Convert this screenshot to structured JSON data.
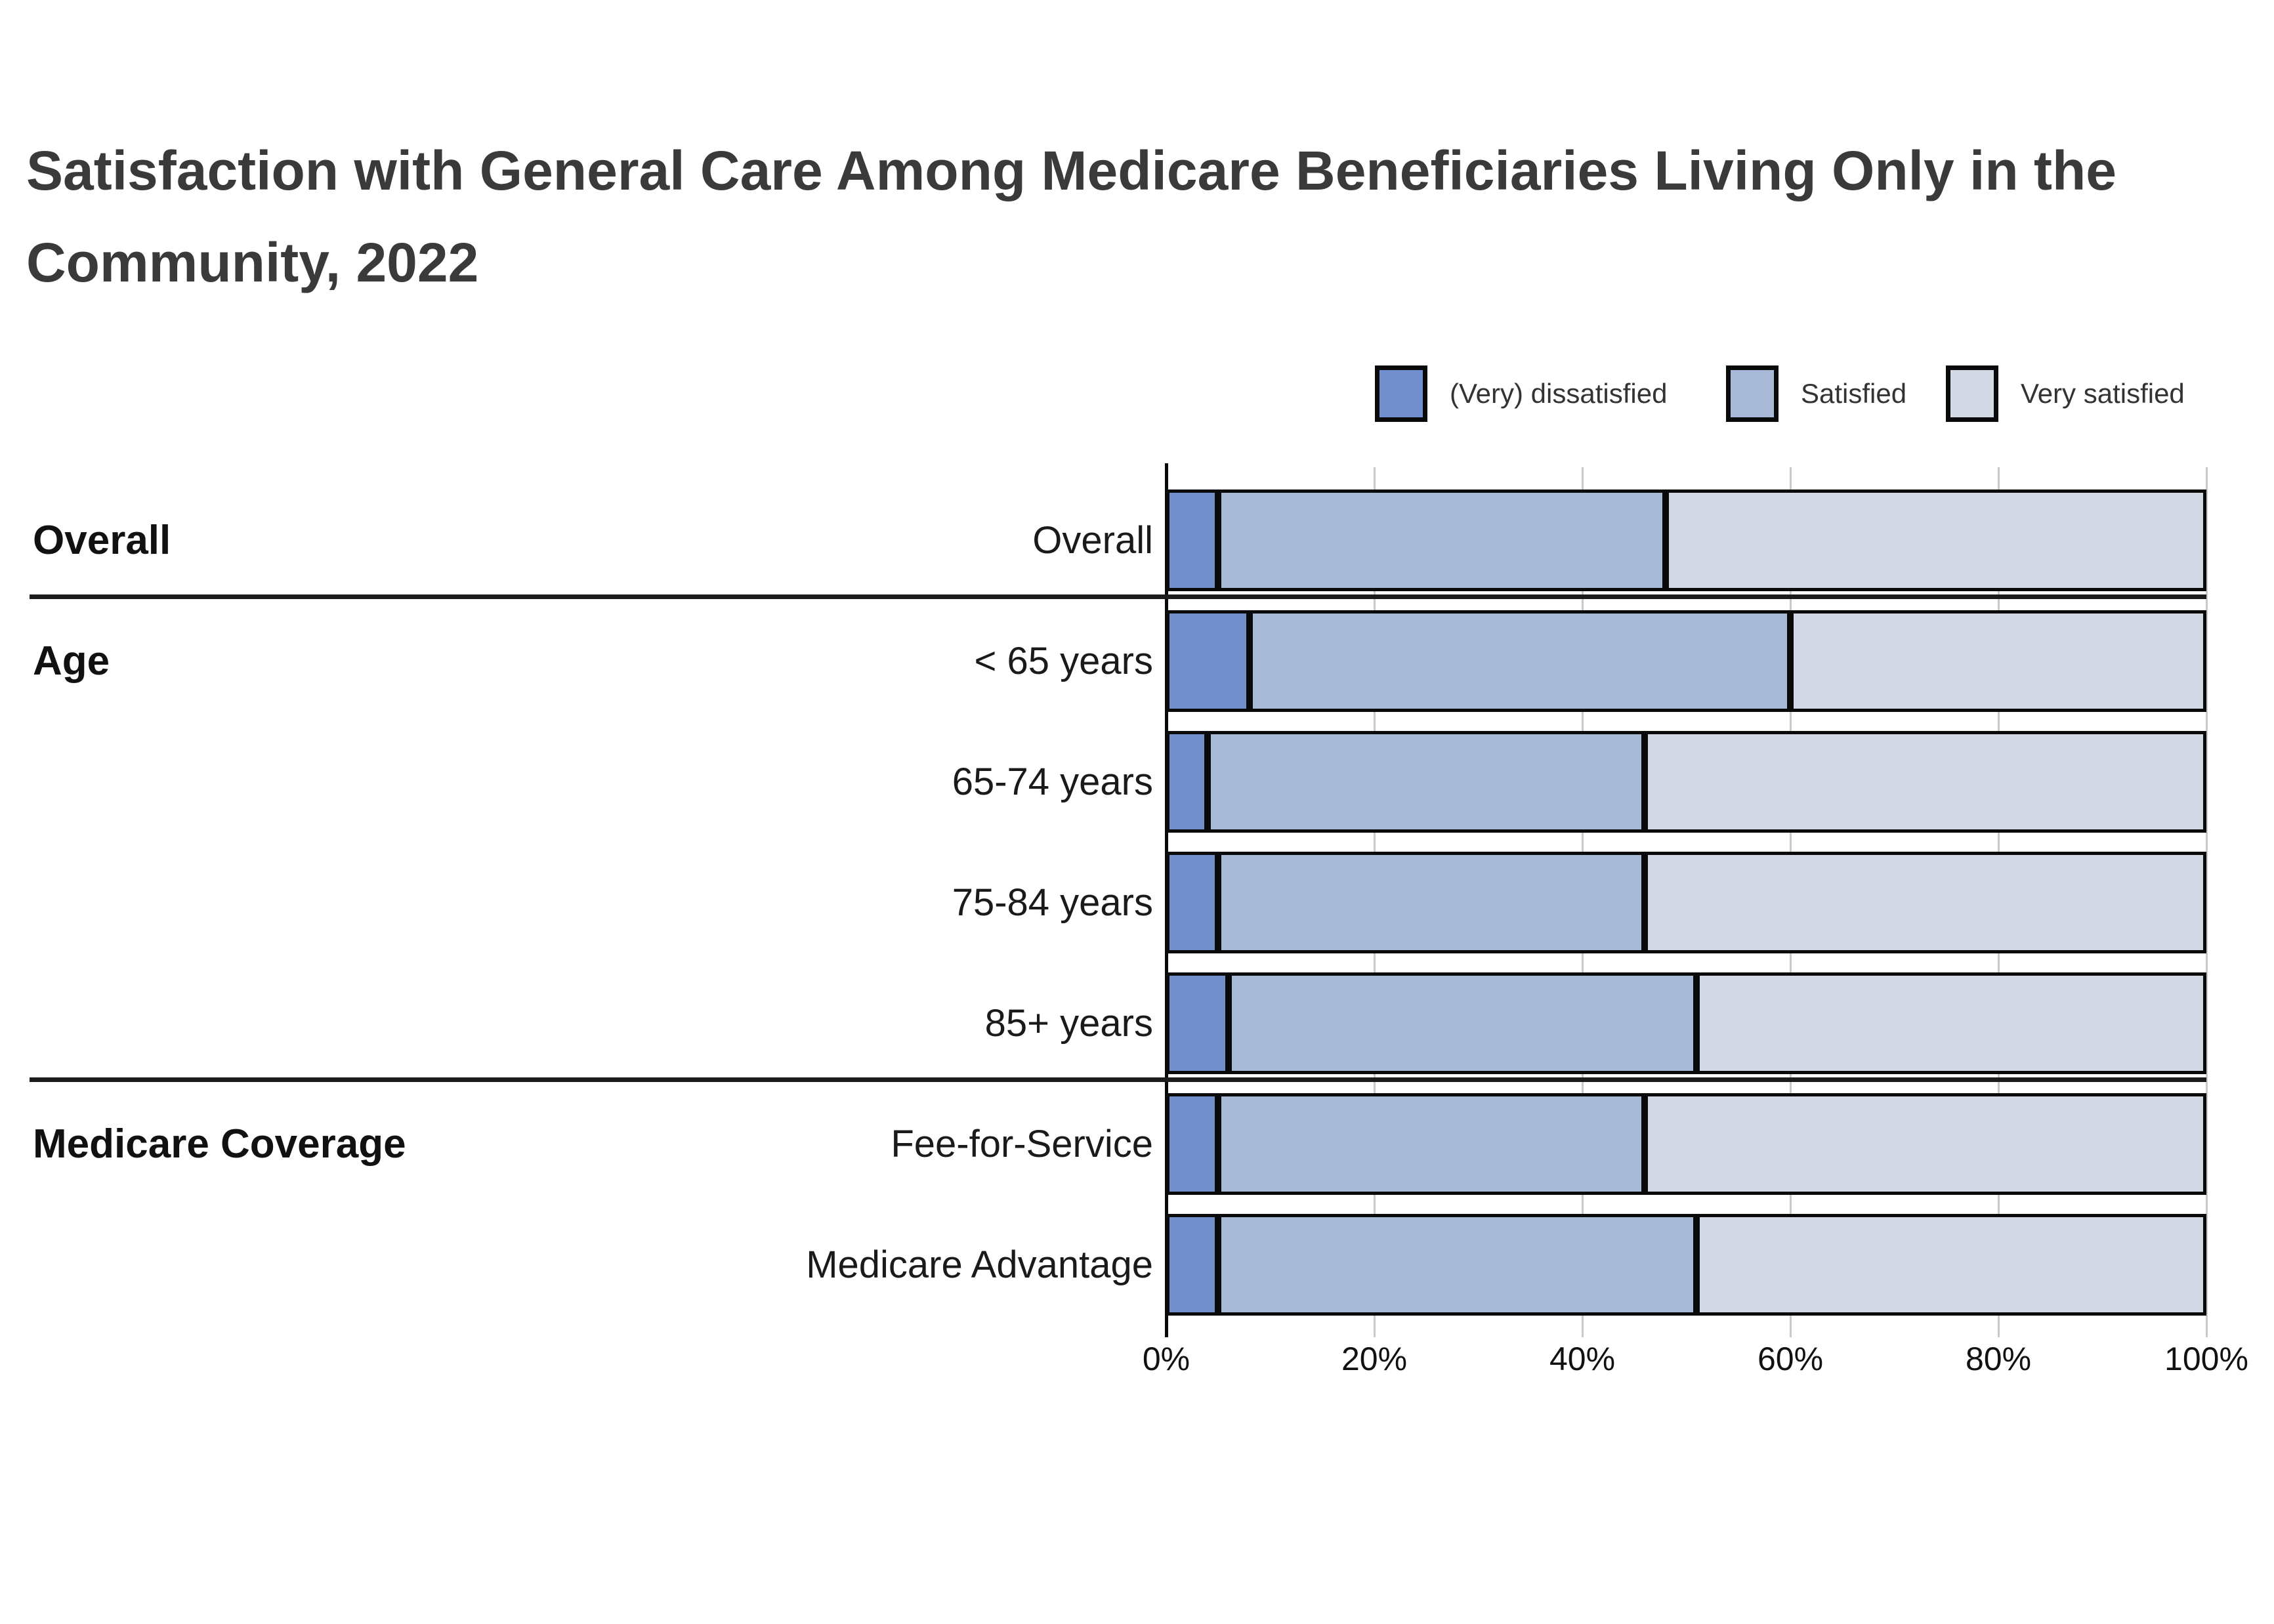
{
  "title": {
    "lines": [
      "Satisfaction with General Care Among Medicare Beneficiaries Living Only in the",
      "Community, 2022"
    ]
  },
  "legend": {
    "items": [
      {
        "name": "very-dissatisfied",
        "label": "(Very) dissatisfied",
        "color": "#7190cd"
      },
      {
        "name": "satisfied",
        "label": "Satisfied",
        "color": "#a9bad9"
      },
      {
        "name": "very-satisfied",
        "label": "Very satisfied",
        "color": "#d4dae5"
      }
    ]
  },
  "chart_data": {
    "type": "bar",
    "orientation": "horizontal",
    "stacked": true,
    "units": "percent",
    "series": [
      {
        "name": "(Very) dissatisfied",
        "color": "#7190cd"
      },
      {
        "name": "Satisfied",
        "color": "#a9bad9"
      },
      {
        "name": "Very satisfied",
        "color": "#d4dae5"
      }
    ],
    "groups": [
      {
        "label": "Overall",
        "rows": [
          {
            "label": "Overall",
            "values": [
              5,
              43,
              52
            ]
          }
        ]
      },
      {
        "label": "Age",
        "rows": [
          {
            "label": "< 65 years",
            "values": [
              8,
              52,
              40
            ]
          },
          {
            "label": "65-74 years",
            "values": [
              4,
              42,
              54
            ]
          },
          {
            "label": "75-84 years",
            "values": [
              5,
              41,
              54
            ]
          },
          {
            "label": "85+ years",
            "values": [
              6,
              45,
              49
            ]
          }
        ]
      },
      {
        "label": "Medicare Coverage",
        "rows": [
          {
            "label": "Fee-for-Service",
            "values": [
              5,
              41,
              54
            ]
          },
          {
            "label": "Medicare Advantage",
            "values": [
              5,
              46,
              49
            ]
          }
        ]
      }
    ],
    "x_axis": {
      "min": 0,
      "max": 100,
      "tick_labels": [
        "0%",
        "20%",
        "40%",
        "60%",
        "80%",
        "100%"
      ],
      "grid": true
    },
    "legend_position": "top-right",
    "bar_border_color": "#0a0a0a",
    "gridline_color": "#c9c9c9"
  }
}
